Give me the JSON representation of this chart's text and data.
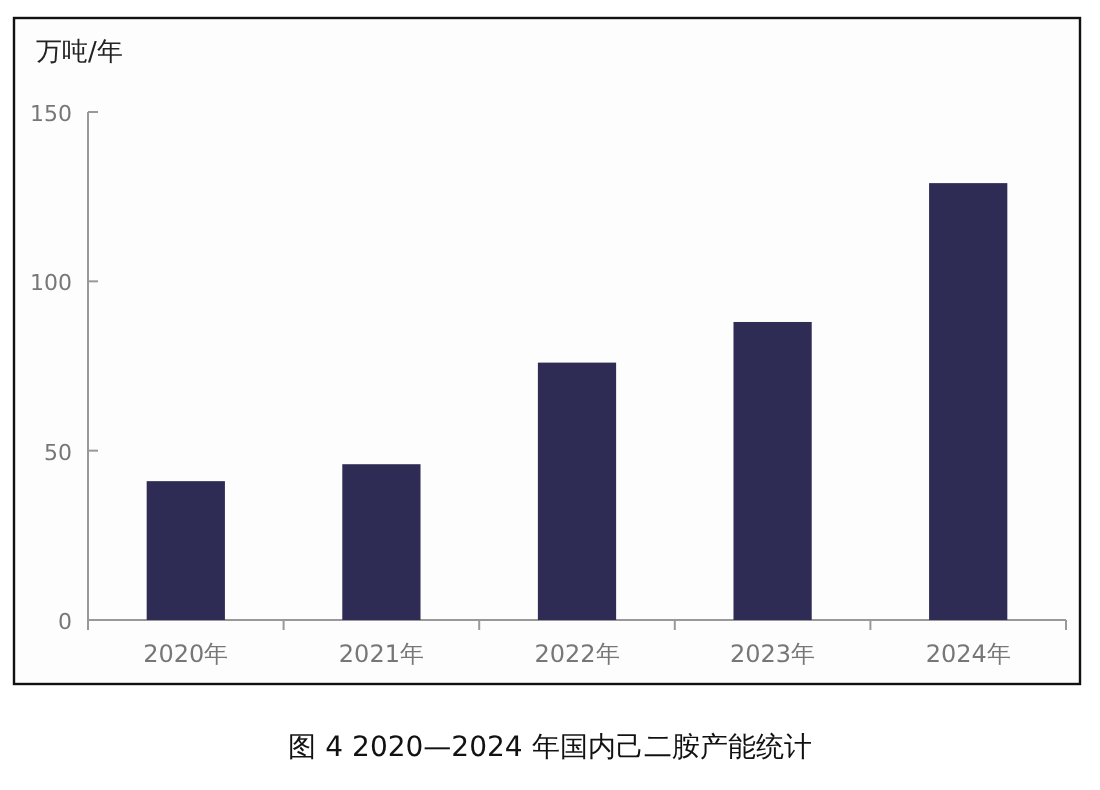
{
  "chart_data": {
    "type": "bar",
    "title": "图 4  2020—2024 年国内己二胺产能统计",
    "ylabel": "万吨/年",
    "categories": [
      "2020年",
      "2021年",
      "2022年",
      "2023年",
      "2024年"
    ],
    "values": [
      41,
      46,
      76,
      88,
      129
    ],
    "color": "#2e2c55",
    "ylim": [
      0,
      150
    ],
    "yticks": [
      0,
      50,
      100,
      150
    ],
    "grid": false
  }
}
